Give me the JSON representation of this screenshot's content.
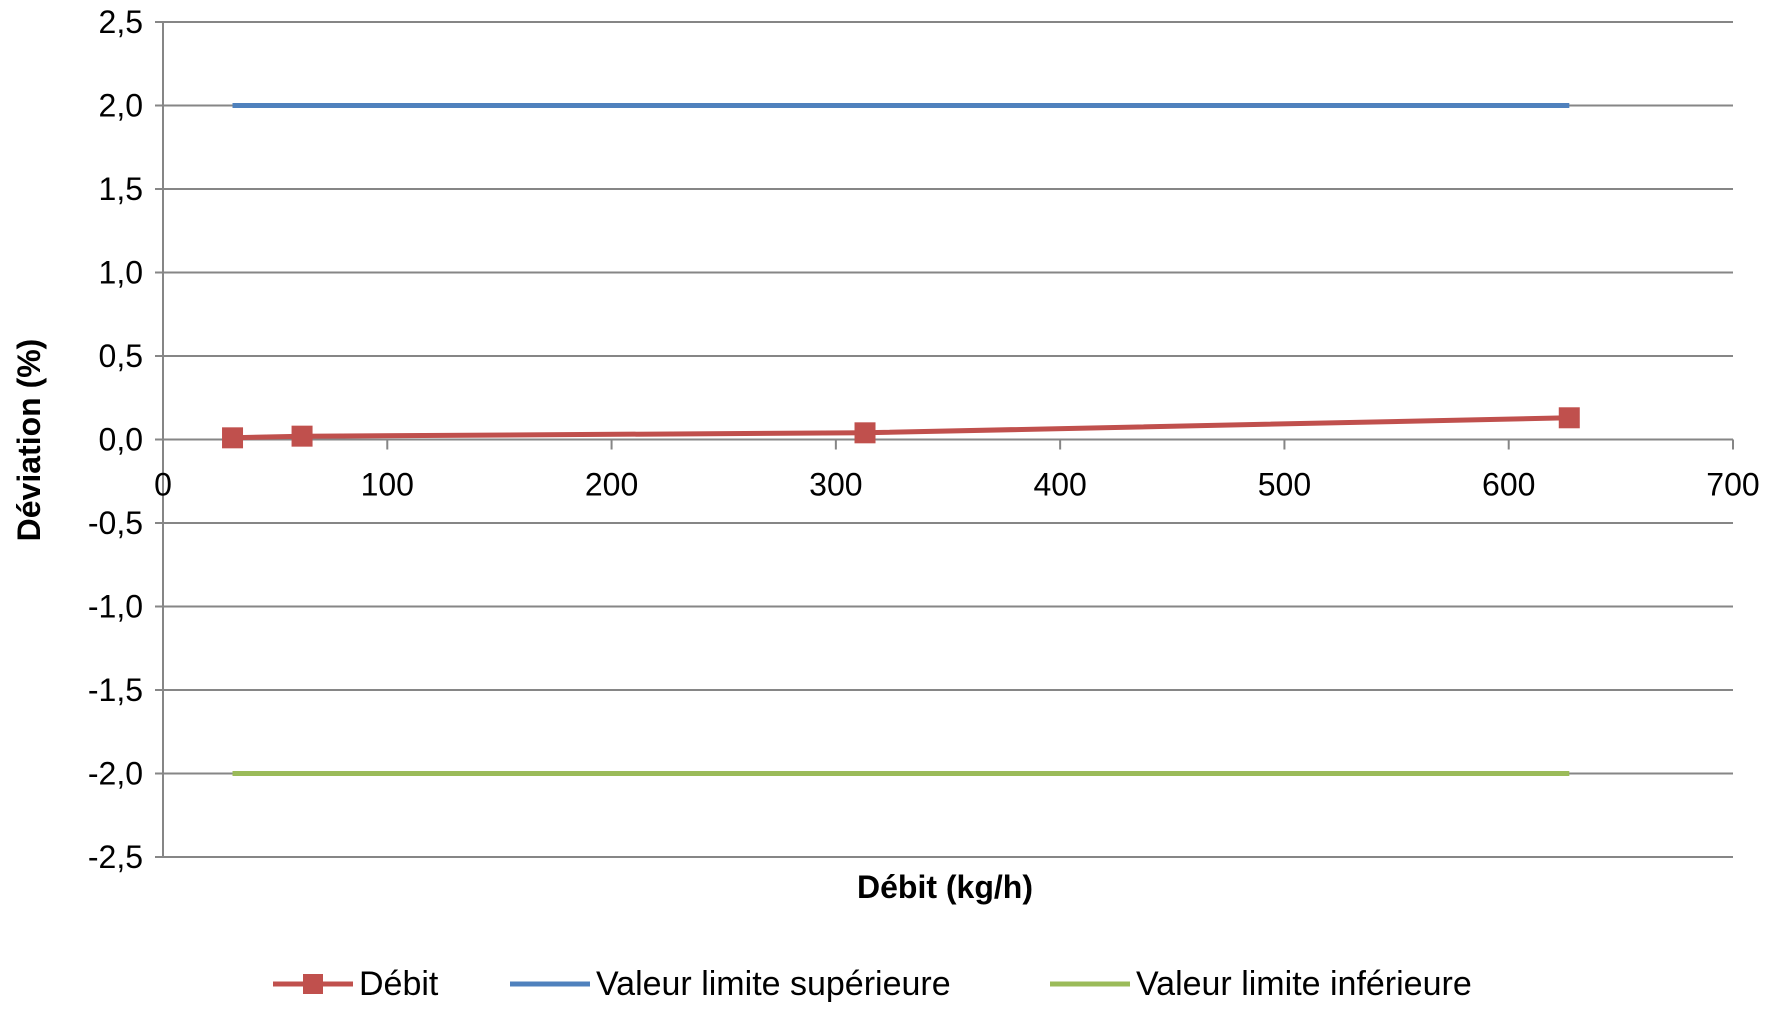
{
  "chart_data": {
    "type": "scatter",
    "xlabel": "Débit (kg/h)",
    "ylabel": "Déviation (%)",
    "xlim": [
      0,
      700
    ],
    "ylim": [
      -2.5,
      2.5
    ],
    "x_ticks": [
      "0",
      "100",
      "200",
      "300",
      "400",
      "500",
      "600",
      "700"
    ],
    "y_ticks": [
      "2,5",
      "2,0",
      "1,5",
      "1,0",
      "0,5",
      "0,0",
      "-0,5",
      "-1,0",
      "-1,5",
      "-2,0",
      "-2,5"
    ],
    "grid": "horizontal",
    "legend_position": "bottom",
    "series": [
      {
        "name": "Débit",
        "color": "#C0504D",
        "marker": "square",
        "x": [
          31,
          62,
          313,
          627
        ],
        "y": [
          0.01,
          0.02,
          0.04,
          0.13
        ]
      },
      {
        "name": "Valeur limite supérieure",
        "color": "#4F81BD",
        "marker": "none",
        "x": [
          31,
          627
        ],
        "y": [
          2.0,
          2.0
        ]
      },
      {
        "name": "Valeur limite inférieure",
        "color": "#9BBB59",
        "marker": "none",
        "x": [
          31,
          627
        ],
        "y": [
          -2.0,
          -2.0
        ]
      }
    ]
  }
}
